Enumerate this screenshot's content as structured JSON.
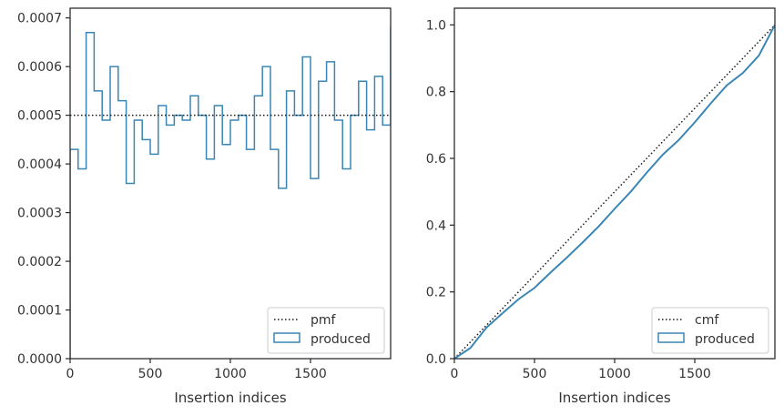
{
  "chart_data": [
    {
      "type": "histogram",
      "xlabel": "Insertion indices",
      "ylabel": "",
      "xlim": [
        0,
        2000
      ],
      "ylim": [
        0,
        0.00072
      ],
      "xticks": [
        0,
        500,
        1000,
        1500
      ],
      "xtick_labels": [
        "0",
        "500",
        "1000",
        "1500"
      ],
      "yticks": [
        0,
        0.0001,
        0.0002,
        0.0003,
        0.0004,
        0.0005,
        0.0006,
        0.0007
      ],
      "ytick_labels": [
        "0.0000",
        "0.0001",
        "0.0002",
        "0.0003",
        "0.0004",
        "0.0005",
        "0.0006",
        "0.0007"
      ],
      "grid": false,
      "legend_position": "lower-right",
      "legend": [
        {
          "label": "pmf",
          "style": "dotted-line"
        },
        {
          "label": "produced",
          "style": "step-patch"
        }
      ],
      "reference_line": {
        "name": "pmf",
        "y": 0.0005
      },
      "bin_width": 50,
      "bin_edges_start": 0,
      "series": [
        {
          "name": "produced",
          "values": [
            0.00043,
            0.00039,
            0.00067,
            0.00055,
            0.00049,
            0.0006,
            0.00053,
            0.00036,
            0.00049,
            0.00045,
            0.00042,
            0.00052,
            0.00048,
            0.0005,
            0.00049,
            0.00054,
            0.0005,
            0.00041,
            0.00052,
            0.00044,
            0.00049,
            0.0005,
            0.00043,
            0.00054,
            0.0006,
            0.00043,
            0.00035,
            0.00055,
            0.0005,
            0.00062,
            0.00037,
            0.00057,
            0.00061,
            0.00049,
            0.00039,
            0.0005,
            0.00057,
            0.00047,
            0.00058,
            0.00048,
            0.00068
          ]
        }
      ]
    },
    {
      "type": "line",
      "xlabel": "Insertion indices",
      "ylabel": "",
      "xlim": [
        0,
        2000
      ],
      "ylim": [
        0,
        1.05
      ],
      "xticks": [
        0,
        500,
        1000,
        1500
      ],
      "xtick_labels": [
        "0",
        "500",
        "1000",
        "1500"
      ],
      "yticks": [
        0,
        0.2,
        0.4,
        0.6,
        0.8,
        1.0
      ],
      "ytick_labels": [
        "0.0",
        "0.2",
        "0.4",
        "0.6",
        "0.8",
        "1.0"
      ],
      "grid": false,
      "legend_position": "lower-right",
      "legend": [
        {
          "label": "cmf",
          "style": "dotted-line"
        },
        {
          "label": "produced",
          "style": "step-patch"
        }
      ],
      "reference_line": {
        "name": "cmf",
        "x": [
          0,
          2000
        ],
        "y": [
          0,
          1.0
        ]
      },
      "series": [
        {
          "name": "produced",
          "x": [
            0,
            100,
            200,
            300,
            400,
            500,
            600,
            700,
            800,
            900,
            1000,
            1100,
            1200,
            1300,
            1400,
            1500,
            1600,
            1700,
            1800,
            1900,
            2000
          ],
          "y": [
            0,
            0.032,
            0.093,
            0.136,
            0.178,
            0.212,
            0.258,
            0.302,
            0.348,
            0.396,
            0.449,
            0.5,
            0.557,
            0.611,
            0.655,
            0.708,
            0.765,
            0.819,
            0.856,
            0.908,
            1.0
          ]
        }
      ]
    }
  ],
  "colors": {
    "series": "#3a86b4",
    "reference": "#1a1a1a",
    "axis": "#262626",
    "text": "#333333"
  }
}
